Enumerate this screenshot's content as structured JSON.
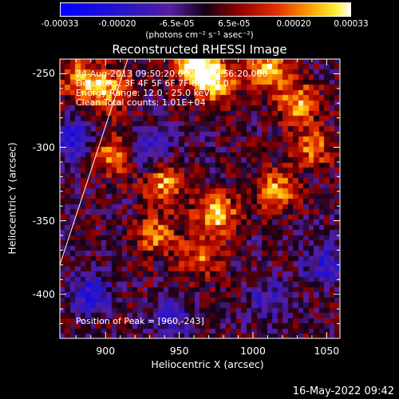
{
  "chart_data": {
    "type": "heatmap",
    "title": "Reconstructed RHESSI Image",
    "xlabel": "Heliocentric X (arcsec)",
    "ylabel": "Heliocentric Y (arcsec)",
    "xlim": [
      869,
      1059
    ],
    "ylim": [
      -430,
      -240
    ],
    "xticks": [
      "900",
      "950",
      "1000",
      "1050"
    ],
    "xtick_values": [
      900,
      950,
      1000,
      1050
    ],
    "yticks": [
      "-250",
      "-300",
      "-350",
      "-400"
    ],
    "ytick_values": [
      -250,
      -300,
      -350,
      -400
    ],
    "colorbar": {
      "min": -0.00033,
      "max": 0.00033,
      "ticks": [
        "-0.00033",
        "-0.00020",
        "-6.5e-05",
        "6.5e-05",
        "0.00020",
        "0.00033"
      ],
      "tick_values": [
        -0.00033,
        -0.0002,
        -6.5e-05,
        6.5e-05,
        0.0002,
        0.00033
      ],
      "units": "(photons cm⁻² s⁻¹ asec⁻²)"
    },
    "annotations": {
      "time_range": "24-Aug-2013 09:50:20.000 to 09:56:20.000",
      "detectors": "Detectors: 3F 4F 5F 6F 7F 8F, Att 0",
      "energy": "Energy Range: 12.0 - 25.0 keV",
      "clean": "Clean     Total counts: 1.01E+04",
      "peak": "Position of Peak = [960,-243]"
    },
    "peak": [
      960,
      -243
    ],
    "limb_line": [
      [
        869,
        -380
      ],
      [
        915,
        -240
      ]
    ],
    "hotspots": [
      {
        "x": 885,
        "y": -255,
        "value": 0.00025
      },
      {
        "x": 905,
        "y": -262,
        "value": 0.00022
      },
      {
        "x": 960,
        "y": -243,
        "value": 0.00033
      },
      {
        "x": 975,
        "y": -255,
        "value": 0.0003
      },
      {
        "x": 1010,
        "y": -248,
        "value": 0.00026
      },
      {
        "x": 1030,
        "y": -270,
        "value": 0.00024
      },
      {
        "x": 905,
        "y": -305,
        "value": 0.00022
      },
      {
        "x": 940,
        "y": -325,
        "value": 0.00024
      },
      {
        "x": 975,
        "y": -345,
        "value": 0.00028
      },
      {
        "x": 1015,
        "y": -330,
        "value": 0.00024
      },
      {
        "x": 1040,
        "y": -300,
        "value": 0.0002
      },
      {
        "x": 965,
        "y": -375,
        "value": 0.00018
      },
      {
        "x": 935,
        "y": -360,
        "value": 0.0002
      }
    ],
    "coldspots": [
      {
        "x": 878,
        "y": -295,
        "value": -0.00022
      },
      {
        "x": 930,
        "y": -300,
        "value": -0.00018
      },
      {
        "x": 890,
        "y": -400,
        "value": -0.0002
      },
      {
        "x": 1050,
        "y": -380,
        "value": -0.00018
      },
      {
        "x": 945,
        "y": -415,
        "value": -0.00016
      },
      {
        "x": 1010,
        "y": -405,
        "value": -0.00014
      }
    ]
  },
  "footer": {
    "timestamp": "16-May-2022 09:42"
  }
}
